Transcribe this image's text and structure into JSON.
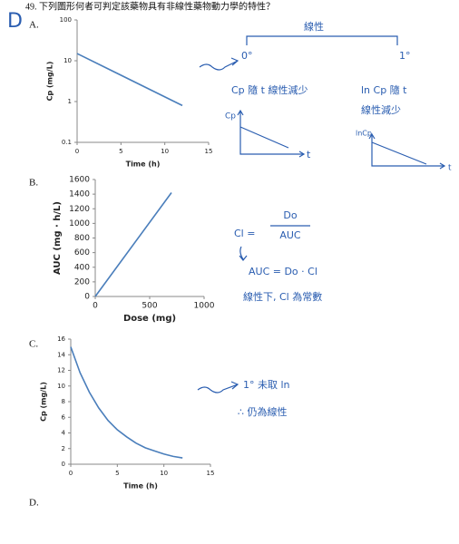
{
  "question": "49. 下列圖形何者可判定該藥物具有非線性藥物動力學的特性？",
  "answer_mark": "D",
  "options": [
    {
      "label": "A.",
      "chart": {
        "type": "line",
        "x_label": "Time (h)",
        "y_label": "Cp (mg/L)",
        "log_y": true,
        "x": [
          0,
          12
        ],
        "values": [
          15,
          0.8
        ],
        "color": "#4a7ebb",
        "xlim": [
          0,
          15
        ],
        "xticks": [
          0,
          5,
          10,
          15
        ],
        "ylim": [
          0.1,
          100
        ],
        "yticks": [
          0.1,
          1,
          10,
          100
        ]
      }
    },
    {
      "label": "B.",
      "chart": {
        "type": "line",
        "x_label": "Dose (mg)",
        "y_label": "AUC (mg · h/L)",
        "log_y": false,
        "x": [
          0,
          700
        ],
        "values": [
          0,
          1420
        ],
        "color": "#4a7ebb",
        "xlim": [
          0,
          1000
        ],
        "xticks": [
          0,
          500,
          1000
        ],
        "ylim": [
          0,
          1600
        ],
        "yticks": [
          0,
          200,
          400,
          600,
          800,
          1000,
          1200,
          1400,
          1600
        ]
      }
    },
    {
      "label": "C.",
      "chart": {
        "type": "line",
        "x_label": "Time (h)",
        "y_label": "Cp (mg/L)",
        "log_y": false,
        "x": [
          0,
          1,
          2,
          3,
          4,
          5,
          6,
          7,
          8,
          9,
          10,
          11,
          12
        ],
        "values": [
          15,
          11.7,
          9.2,
          7.2,
          5.6,
          4.4,
          3.5,
          2.7,
          2.1,
          1.7,
          1.3,
          1.0,
          0.8
        ],
        "color": "#4a7ebb",
        "xlim": [
          0,
          15
        ],
        "xticks": [
          0,
          5,
          10,
          15
        ],
        "ylim": [
          0,
          16
        ],
        "yticks": [
          0,
          2,
          4,
          6,
          8,
          10,
          12,
          14,
          16
        ]
      }
    },
    {
      "label": "D."
    }
  ],
  "notes": {
    "linear": "線性",
    "zero_order": "0°",
    "first_order": "1°",
    "zero_desc": "Cp 隨 t 線性減少",
    "first_desc_1": "ln Cp 隨 t",
    "first_desc_2": "線性減少",
    "sketch1_y": "Cp",
    "sketch1_x": "t",
    "sketch2_y": "lnCp",
    "sketch2_x": "t",
    "cl_eq": "Cl =",
    "cl_num": "Do",
    "cl_den": "AUC",
    "auc_eq": "AUC = Do · Cl",
    "auc_note": "線性下, Cl 為常數",
    "c_note_1": "1° 未取 ln",
    "c_note_2": "∴ 仍為線性"
  }
}
